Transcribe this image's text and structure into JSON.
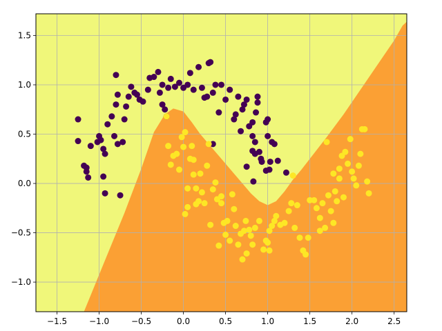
{
  "chart_data": {
    "type": "scatter",
    "title": "",
    "xlabel": "",
    "ylabel": "",
    "xlim": [
      -1.75,
      2.65
    ],
    "ylim": [
      -1.3,
      1.72
    ],
    "grid": true,
    "x_ticks": [
      -1.5,
      -1.0,
      -0.5,
      0.0,
      0.5,
      1.0,
      1.5,
      2.0,
      2.5
    ],
    "x_tick_labels": [
      "−1.5",
      "−1.0",
      "−0.5",
      "0.0",
      "0.5",
      "1.0",
      "1.5",
      "2.0",
      "2.5"
    ],
    "y_ticks": [
      -1.0,
      -0.5,
      0.0,
      0.5,
      1.0,
      1.5
    ],
    "y_tick_labels": [
      "−1.0",
      "−0.5",
      "0.0",
      "0.5",
      "1.0",
      "1.5"
    ],
    "colors": {
      "region_class_0": "#f0f77a",
      "region_class_1": "#fba034",
      "class_0_points": "#440154",
      "class_1_points": "#fde725",
      "grid": "#b0b0b0"
    },
    "decision_boundary": [
      [
        -1.18,
        -1.3
      ],
      [
        -0.95,
        -0.82
      ],
      [
        -0.7,
        -0.3
      ],
      [
        -0.5,
        0.15
      ],
      [
        -0.35,
        0.52
      ],
      [
        -0.22,
        0.7
      ],
      [
        -0.12,
        0.76
      ],
      [
        0.0,
        0.73
      ],
      [
        0.1,
        0.62
      ],
      [
        0.2,
        0.5
      ],
      [
        0.3,
        0.4
      ],
      [
        0.4,
        0.3
      ],
      [
        0.5,
        0.2
      ],
      [
        0.6,
        0.1
      ],
      [
        0.7,
        0.0
      ],
      [
        0.8,
        -0.1
      ],
      [
        0.9,
        -0.18
      ],
      [
        1.0,
        -0.22
      ],
      [
        1.1,
        -0.18
      ],
      [
        1.2,
        -0.08
      ],
      [
        1.3,
        0.04
      ],
      [
        1.4,
        0.14
      ],
      [
        1.5,
        0.25
      ],
      [
        1.7,
        0.47
      ],
      [
        1.9,
        0.7
      ],
      [
        2.1,
        0.95
      ],
      [
        2.3,
        1.2
      ],
      [
        2.5,
        1.45
      ],
      [
        2.6,
        1.6
      ],
      [
        2.75,
        1.72
      ]
    ],
    "series": [
      {
        "class": 0,
        "points": [
          [
            -1.25,
            0.65
          ],
          [
            -1.25,
            0.43
          ],
          [
            -1.18,
            0.18
          ],
          [
            -1.15,
            0.16
          ],
          [
            -1.15,
            0.12
          ],
          [
            -1.13,
            0.06
          ],
          [
            -1.1,
            0.38
          ],
          [
            -1.02,
            0.42
          ],
          [
            -1.0,
            0.48
          ],
          [
            -0.98,
            0.44
          ],
          [
            -0.95,
            0.35
          ],
          [
            -0.93,
            0.3
          ],
          [
            -0.95,
            0.07
          ],
          [
            -0.93,
            -0.1
          ],
          [
            -0.9,
            0.6
          ],
          [
            -0.85,
            0.68
          ],
          [
            -0.82,
            0.48
          ],
          [
            -0.78,
            0.4
          ],
          [
            -0.72,
            0.42
          ],
          [
            -0.75,
            -0.12
          ],
          [
            -0.8,
            0.8
          ],
          [
            -0.78,
            0.9
          ],
          [
            -0.8,
            1.1
          ],
          [
            -0.7,
            0.65
          ],
          [
            -0.68,
            0.78
          ],
          [
            -0.65,
            0.88
          ],
          [
            -0.62,
            0.98
          ],
          [
            -0.58,
            0.92
          ],
          [
            -0.55,
            0.9
          ],
          [
            -0.52,
            0.85
          ],
          [
            -0.48,
            0.83
          ],
          [
            -0.42,
            0.95
          ],
          [
            -0.4,
            1.07
          ],
          [
            -0.35,
            1.08
          ],
          [
            -0.3,
            1.13
          ],
          [
            -0.28,
            0.92
          ],
          [
            -0.25,
            1.0
          ],
          [
            -0.25,
            0.8
          ],
          [
            -0.22,
            0.75
          ],
          [
            -0.2,
            0.68
          ],
          [
            -0.18,
            0.97
          ],
          [
            -0.15,
            1.06
          ],
          [
            -0.1,
            0.98
          ],
          [
            -0.05,
            1.02
          ],
          [
            0.0,
            0.97
          ],
          [
            0.05,
            1.0
          ],
          [
            0.08,
            1.12
          ],
          [
            0.12,
            0.95
          ],
          [
            0.18,
            1.18
          ],
          [
            0.22,
            0.97
          ],
          [
            0.25,
            0.87
          ],
          [
            0.28,
            0.88
          ],
          [
            0.3,
            1.22
          ],
          [
            0.32,
            1.23
          ],
          [
            0.35,
            0.92
          ],
          [
            0.38,
            1.0
          ],
          [
            0.42,
            0.72
          ],
          [
            0.45,
            1.0
          ],
          [
            0.5,
            0.85
          ],
          [
            0.55,
            0.95
          ],
          [
            0.6,
            0.65
          ],
          [
            0.62,
            0.7
          ],
          [
            0.65,
            0.88
          ],
          [
            0.68,
            0.53
          ],
          [
            0.7,
            0.75
          ],
          [
            0.72,
            0.8
          ],
          [
            0.75,
            0.85
          ],
          [
            0.78,
            0.58
          ],
          [
            0.82,
            0.62
          ],
          [
            0.82,
            0.48
          ],
          [
            0.82,
            0.33
          ],
          [
            0.85,
            0.42
          ],
          [
            0.85,
            0.3
          ],
          [
            0.86,
            0.72
          ],
          [
            0.88,
            0.88
          ],
          [
            0.88,
            0.82
          ],
          [
            0.9,
            0.32
          ],
          [
            0.92,
            0.25
          ],
          [
            0.93,
            0.22
          ],
          [
            0.98,
            0.62
          ],
          [
            1.0,
            0.65
          ],
          [
            1.0,
            0.48
          ],
          [
            1.02,
            0.14
          ],
          [
            1.03,
            0.22
          ],
          [
            1.05,
            0.42
          ],
          [
            1.08,
            0.4
          ],
          [
            1.12,
            0.23
          ],
          [
            1.22,
            0.11
          ],
          [
            0.35,
            0.4
          ],
          [
            0.75,
            0.17
          ],
          [
            0.83,
            0.02
          ],
          [
            0.98,
            0.13
          ]
        ]
      },
      {
        "class": 1,
        "points": [
          [
            -0.2,
            0.68
          ],
          [
            -0.18,
            0.38
          ],
          [
            -0.15,
            0.19
          ],
          [
            -0.12,
            0.28
          ],
          [
            -0.08,
            0.3
          ],
          [
            -0.05,
            0.14
          ],
          [
            -0.02,
            0.47
          ],
          [
            0.0,
            0.37
          ],
          [
            0.02,
            -0.31
          ],
          [
            0.05,
            -0.24
          ],
          [
            0.05,
            -0.05
          ],
          [
            0.08,
            0.25
          ],
          [
            0.1,
            0.38
          ],
          [
            0.12,
            0.09
          ],
          [
            0.12,
            0.24
          ],
          [
            0.15,
            -0.05
          ],
          [
            0.15,
            -0.21
          ],
          [
            0.18,
            -0.18
          ],
          [
            0.2,
            0.1
          ],
          [
            0.22,
            -0.09
          ],
          [
            0.25,
            -0.2
          ],
          [
            0.28,
            0.18
          ],
          [
            0.3,
            0.4
          ],
          [
            0.32,
            -0.42
          ],
          [
            0.35,
            -0.06
          ],
          [
            0.38,
            0.01
          ],
          [
            0.4,
            -0.16
          ],
          [
            0.42,
            -0.63
          ],
          [
            0.45,
            -0.2
          ],
          [
            0.45,
            -0.13
          ],
          [
            0.48,
            -0.4
          ],
          [
            0.5,
            -0.52
          ],
          [
            0.52,
            -0.38
          ],
          [
            0.55,
            -0.58
          ],
          [
            0.58,
            -0.11
          ],
          [
            0.6,
            -0.26
          ],
          [
            0.62,
            -0.43
          ],
          [
            0.65,
            -0.62
          ],
          [
            0.68,
            -0.51
          ],
          [
            0.7,
            -0.77
          ],
          [
            0.72,
            -0.48
          ],
          [
            0.74,
            -0.38
          ],
          [
            0.75,
            -0.71
          ],
          [
            0.78,
            -0.47
          ],
          [
            0.8,
            -0.53
          ],
          [
            0.82,
            -0.62
          ],
          [
            0.85,
            -0.45
          ],
          [
            0.9,
            -0.38
          ],
          [
            0.95,
            -0.67
          ],
          [
            0.98,
            -0.58
          ],
          [
            1.0,
            -0.6
          ],
          [
            1.02,
            -0.68
          ],
          [
            1.05,
            -0.43
          ],
          [
            1.08,
            -0.38
          ],
          [
            1.1,
            -0.33
          ],
          [
            1.15,
            -0.42
          ],
          [
            1.2,
            -0.4
          ],
          [
            1.25,
            -0.28
          ],
          [
            1.28,
            -0.2
          ],
          [
            1.32,
            -0.45
          ],
          [
            1.35,
            -0.22
          ],
          [
            1.38,
            -0.55
          ],
          [
            1.42,
            -0.68
          ],
          [
            1.45,
            -0.72
          ],
          [
            1.48,
            -0.55
          ],
          [
            1.5,
            -0.17
          ],
          [
            1.55,
            -0.17
          ],
          [
            1.58,
            -0.25
          ],
          [
            1.62,
            -0.35
          ],
          [
            1.65,
            -0.2
          ],
          [
            1.68,
            -0.45
          ],
          [
            1.72,
            -0.12
          ],
          [
            1.75,
            -0.28
          ],
          [
            1.78,
            -0.4
          ],
          [
            1.8,
            -0.08
          ],
          [
            1.82,
            -0.18
          ],
          [
            1.85,
            0.15
          ],
          [
            1.85,
            0.05
          ],
          [
            1.88,
            0.28
          ],
          [
            1.92,
            0.32
          ],
          [
            1.95,
            0.2
          ],
          [
            1.98,
            0.45
          ],
          [
            2.0,
            0.12
          ],
          [
            2.02,
            0.05
          ],
          [
            2.05,
            -0.02
          ],
          [
            2.08,
            0.18
          ],
          [
            2.1,
            0.3
          ],
          [
            2.12,
            0.55
          ],
          [
            2.15,
            0.55
          ],
          [
            2.18,
            0.02
          ],
          [
            2.2,
            -0.1
          ],
          [
            1.02,
            -0.48
          ],
          [
            0.02,
            0.52
          ],
          [
            1.7,
            0.42
          ],
          [
            1.78,
            0.1
          ],
          [
            1.62,
            -0.48
          ],
          [
            1.3,
            0.08
          ],
          [
            1.9,
            -0.14
          ]
        ]
      }
    ]
  }
}
